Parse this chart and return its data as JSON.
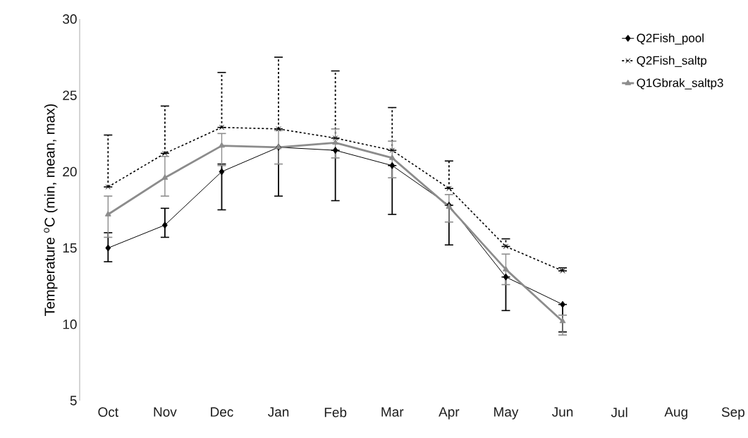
{
  "chart_data": {
    "type": "line",
    "ylabel": "Temperature $^{o}$C (min, mean, max)",
    "categories": [
      "Oct",
      "Nov",
      "Dec",
      "Jan",
      "Feb",
      "Mar",
      "Apr",
      "May",
      "Jun",
      "Jul",
      "Aug",
      "Sep"
    ],
    "series": [
      {
        "name": "Q2Fish_pool",
        "color": "#000000",
        "marker": "diamond",
        "line_style": "solid",
        "values": [
          15.0,
          16.5,
          20.0,
          21.6,
          21.4,
          20.4,
          17.8,
          13.1,
          11.3,
          null,
          null,
          null
        ],
        "errors": [
          [
            14.1,
            16.0
          ],
          [
            15.7,
            17.6
          ],
          [
            17.5,
            20.5
          ],
          [
            18.4,
            21.6
          ],
          [
            18.1,
            21.4
          ],
          [
            17.2,
            20.4
          ],
          [
            15.2,
            17.8
          ],
          [
            10.9,
            13.1
          ],
          [
            9.5,
            11.3
          ],
          null,
          null,
          null
        ]
      },
      {
        "name": "Q2Fish_saltp",
        "color": "#000000",
        "marker": "cross",
        "line_style": "dashed",
        "values": [
          19.0,
          21.2,
          22.9,
          22.8,
          22.2,
          21.4,
          18.9,
          15.1,
          13.5,
          null,
          null,
          null
        ],
        "errors": [
          [
            19.0,
            22.4
          ],
          [
            21.2,
            24.3
          ],
          [
            22.9,
            26.5
          ],
          [
            22.8,
            27.5
          ],
          [
            22.2,
            26.6
          ],
          [
            21.4,
            24.2
          ],
          [
            18.9,
            20.7
          ],
          [
            15.1,
            15.6
          ],
          [
            13.5,
            13.7
          ],
          null,
          null,
          null
        ]
      },
      {
        "name": "Q1Gbrak_saltp3",
        "color": "#8c8c8c",
        "marker": "triangle",
        "line_style": "solid",
        "values": [
          17.2,
          19.6,
          21.7,
          21.6,
          21.9,
          20.9,
          17.7,
          13.6,
          10.2,
          null,
          null,
          null
        ],
        "errors": [
          [
            15.7,
            18.4
          ],
          [
            18.4,
            21.0
          ],
          [
            20.4,
            22.5
          ],
          [
            20.5,
            22.7
          ],
          [
            20.9,
            22.8
          ],
          [
            19.6,
            22.0
          ],
          [
            16.7,
            18.5
          ],
          [
            12.6,
            14.6
          ],
          [
            9.3,
            10.6
          ],
          null,
          null,
          null
        ]
      }
    ],
    "ylim": [
      5,
      30
    ],
    "yticks": [
      5,
      10,
      15,
      20,
      25,
      30
    ],
    "grid": false,
    "legend": "top right"
  }
}
